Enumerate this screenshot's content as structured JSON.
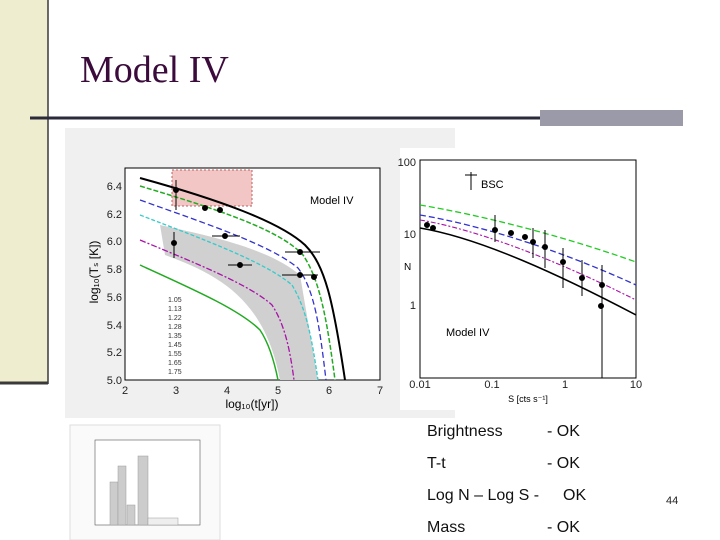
{
  "title": "Model IV",
  "slide_number": "44",
  "cooling_plot": {
    "label": "Model IV",
    "y_label": "log₁₀(Tₛ [K])",
    "x_label": "log₁₀(t[yr])",
    "x_ticks": [
      "2",
      "3",
      "4",
      "5",
      "6",
      "7"
    ],
    "y_ticks": [
      "5.0",
      "5.2",
      "5.4",
      "5.6",
      "5.8",
      "6.0",
      "6.2",
      "6.4"
    ],
    "legend": [
      "1.05",
      "1.13",
      "1.22",
      "1.28",
      "1.35",
      "1.45",
      "1.55",
      "1.65",
      "1.75"
    ]
  },
  "lognlogs_plot": {
    "label": "Model IV",
    "marker": "BSC",
    "y_label": "N",
    "x_label": "S [cts s⁻¹]",
    "x_ticks": [
      "0.01",
      "0.1",
      "1",
      "10"
    ],
    "y_ticks": [
      "1",
      "10",
      "100"
    ]
  },
  "checklist": [
    {
      "item": "Brightness",
      "status": "- OK"
    },
    {
      "item": "T-t",
      "status": "- OK"
    },
    {
      "item": "Log N – Log S -",
      "status": "OK"
    },
    {
      "item": "Mass",
      "status": "- OK"
    }
  ]
}
